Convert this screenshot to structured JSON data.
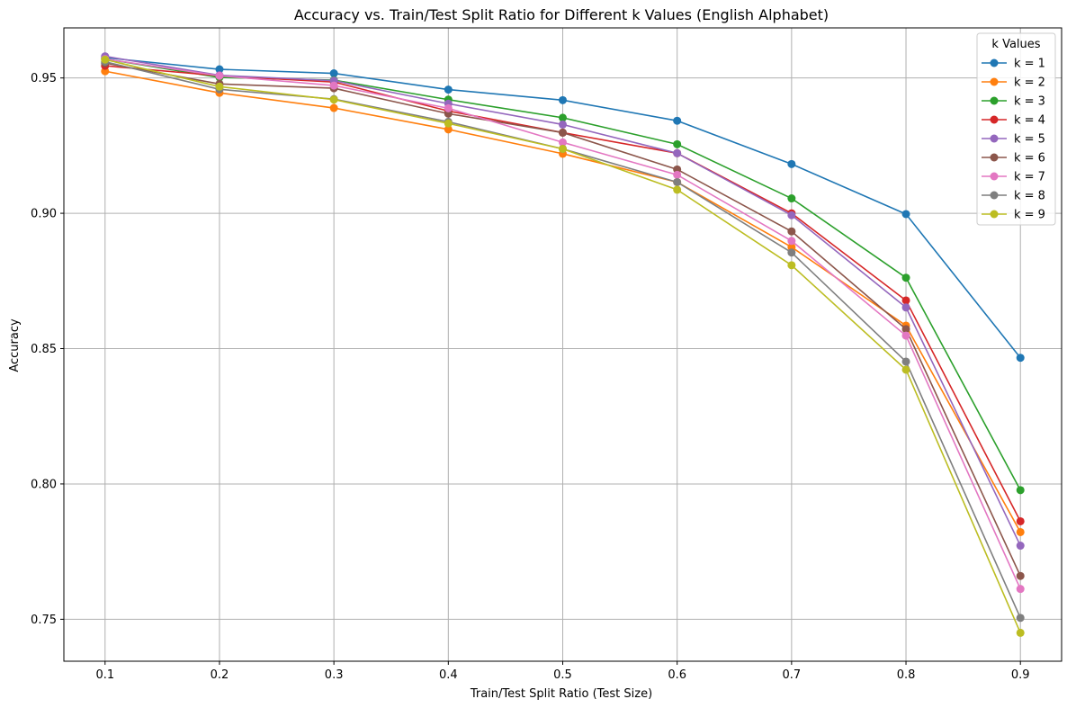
{
  "chart_data": {
    "type": "line",
    "title": "Accuracy vs. Train/Test Split Ratio for Different k Values (English Alphabet)",
    "xlabel": "Train/Test Split Ratio (Test Size)",
    "ylabel": "Accuracy",
    "xlim": [
      0.064,
      0.936
    ],
    "ylim": [
      0.7345,
      0.9685
    ],
    "x_ticks": [
      0.1,
      0.2,
      0.3,
      0.4,
      0.5,
      0.6,
      0.7,
      0.8,
      0.9
    ],
    "x_tick_labels": [
      "0.1",
      "0.2",
      "0.3",
      "0.4",
      "0.5",
      "0.6",
      "0.7",
      "0.8",
      "0.9"
    ],
    "y_ticks": [
      0.75,
      0.8,
      0.85,
      0.9,
      0.95
    ],
    "y_tick_labels": [
      "0.75",
      "0.80",
      "0.85",
      "0.90",
      "0.95"
    ],
    "grid": true,
    "legend": {
      "title": "k Values",
      "position": "top-right"
    },
    "x": [
      0.1,
      0.2,
      0.3,
      0.4,
      0.5,
      0.6,
      0.7,
      0.8,
      0.9
    ],
    "series": [
      {
        "name": "k = 1",
        "color": "#1f77b4",
        "values": [
          0.9575,
          0.9532,
          0.9517,
          0.9457,
          0.9418,
          0.9342,
          0.9182,
          0.8997,
          0.8466
        ]
      },
      {
        "name": "k = 2",
        "color": "#ff7f0e",
        "values": [
          0.9525,
          0.9445,
          0.9389,
          0.931,
          0.922,
          0.9115,
          0.8875,
          0.8585,
          0.7822
        ]
      },
      {
        "name": "k = 3",
        "color": "#2ca02c",
        "values": [
          0.957,
          0.9502,
          0.9492,
          0.942,
          0.9353,
          0.9255,
          0.9055,
          0.8762,
          0.7977
        ]
      },
      {
        "name": "k = 4",
        "color": "#d62728",
        "values": [
          0.9545,
          0.9508,
          0.9485,
          0.9378,
          0.9298,
          0.9222,
          0.9,
          0.8678,
          0.7862
        ]
      },
      {
        "name": "k = 5",
        "color": "#9467bd",
        "values": [
          0.958,
          0.951,
          0.949,
          0.9405,
          0.9328,
          0.9222,
          0.8993,
          0.8652,
          0.7772
        ]
      },
      {
        "name": "k = 6",
        "color": "#8c564b",
        "values": [
          0.9555,
          0.9478,
          0.9462,
          0.9368,
          0.9298,
          0.9162,
          0.8933,
          0.8572,
          0.766
        ]
      },
      {
        "name": "k = 7",
        "color": "#e377c2",
        "values": [
          0.957,
          0.9508,
          0.9472,
          0.9388,
          0.9262,
          0.9142,
          0.8898,
          0.8548,
          0.7612
        ]
      },
      {
        "name": "k = 8",
        "color": "#7f7f7f",
        "values": [
          0.956,
          0.9458,
          0.9422,
          0.9338,
          0.9238,
          0.9115,
          0.8855,
          0.8452,
          0.7505
        ]
      },
      {
        "name": "k = 9",
        "color": "#bcbd22",
        "values": [
          0.9568,
          0.9468,
          0.942,
          0.9332,
          0.9238,
          0.9087,
          0.8808,
          0.8422,
          0.745
        ]
      }
    ]
  }
}
